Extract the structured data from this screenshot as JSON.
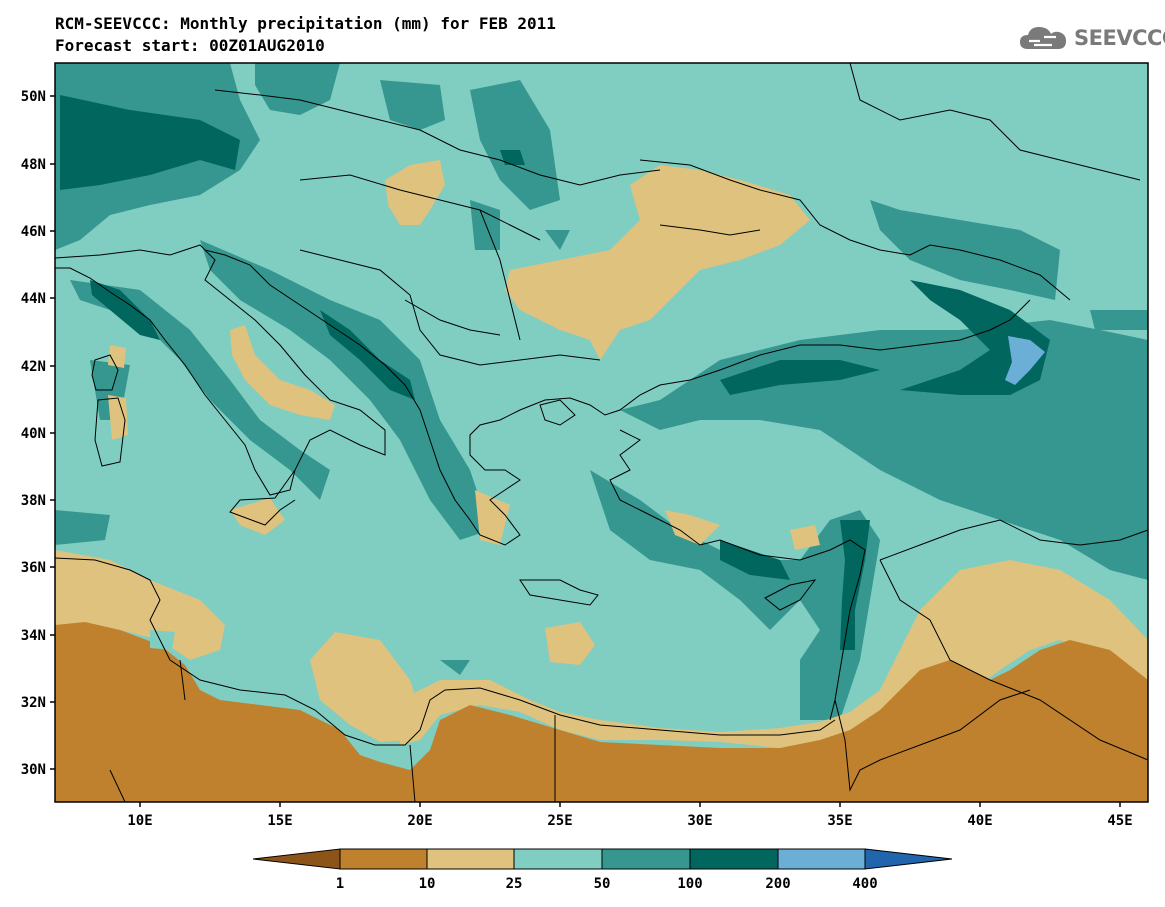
{
  "header": {
    "title_line1": "RCM-SEEVCCC: Monthly precipitation (mm) for FEB 2011",
    "title_line2": "Forecast start: 00Z01AUG2010",
    "logo_text": "SEEVCCC"
  },
  "map": {
    "lon_range": [
      7,
      46
    ],
    "lat_range": [
      29,
      51
    ],
    "lon_ticks": [
      "10E",
      "15E",
      "20E",
      "25E",
      "30E",
      "35E",
      "40E",
      "45E"
    ],
    "lat_ticks": [
      "30N",
      "32N",
      "34N",
      "36N",
      "38N",
      "40N",
      "42N",
      "44N",
      "46N",
      "48N",
      "50N"
    ]
  },
  "colorbar": {
    "labels": [
      "1",
      "10",
      "25",
      "50",
      "100",
      "200",
      "400"
    ],
    "colors": {
      "below_1": "#8c5418",
      "1_10": "#bf812d",
      "10_25": "#dfc27d",
      "25_50": "#80cdc1",
      "50_100": "#35978f",
      "100_200": "#01665e",
      "200_400": "#6baed6",
      "above_400": "#2166ac"
    }
  }
}
